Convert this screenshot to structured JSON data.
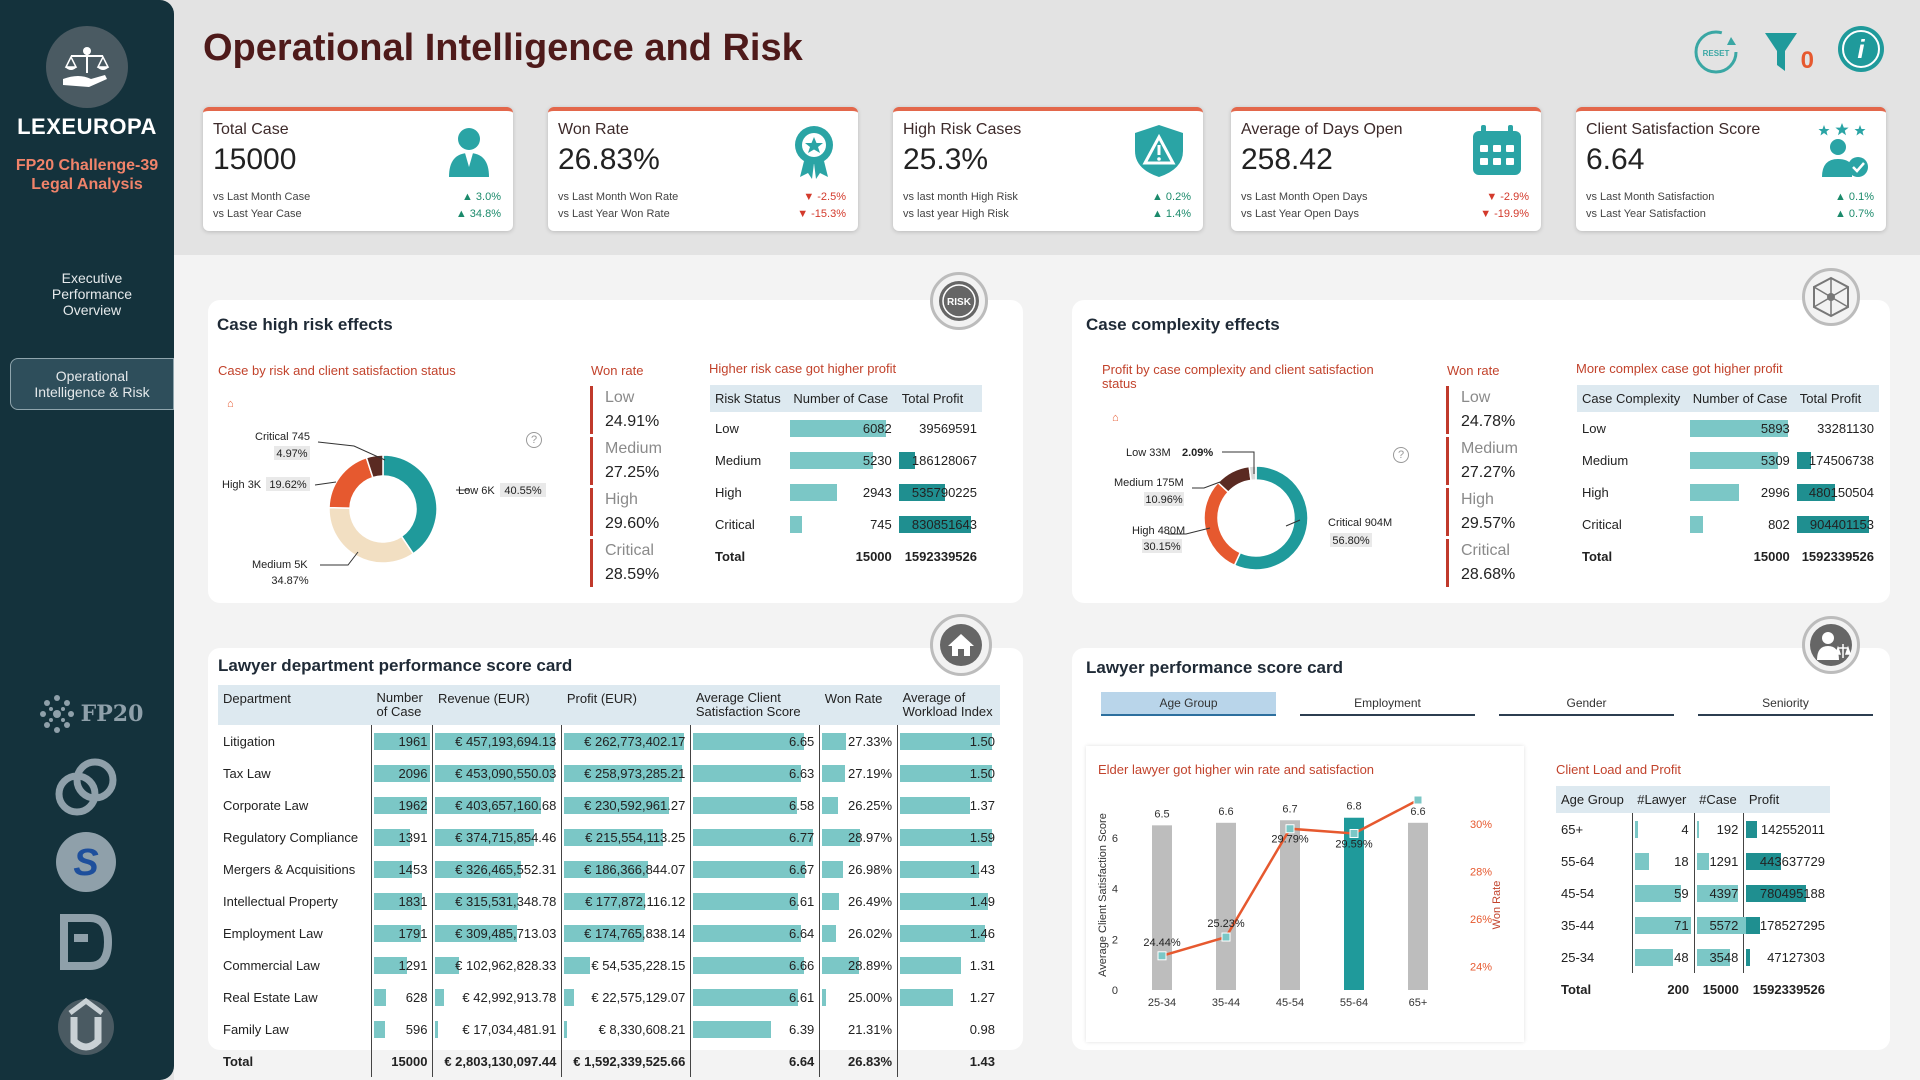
{
  "brand": {
    "name": "LEXEUROPA",
    "subtitle_line1": "FP20 Challenge-39",
    "subtitle_line2": "Legal Analysis",
    "fp20_label": "FP20"
  },
  "nav": {
    "item1_line1": "Executive",
    "item1_line2": "Performance",
    "item1_line3": "Overview",
    "item2_line1": "Operational",
    "item2_line2": "Intelligence & Risk"
  },
  "header": {
    "title": "Operational Intelligence and Risk",
    "reset_label": "RESET",
    "filter_count": "0"
  },
  "kpis": [
    {
      "title": "Total Case",
      "value": "15000",
      "row1_label": "vs Last Month Case",
      "row1_value": "▲ 3.0%",
      "row2_label": "vs Last Year Case",
      "row2_value": "▲ 34.8%"
    },
    {
      "title": "Won Rate",
      "value": "26.83%",
      "row1_label": "vs Last Month Won Rate",
      "row1_value": "▼ -2.5%",
      "row2_label": "vs Last Year Won Rate",
      "row2_value": "▼ -15.3%"
    },
    {
      "title": "High Risk Cases",
      "value": "25.3%",
      "row1_label": "vs last month High Risk",
      "row1_value": "▲ 0.2%",
      "row2_label": "vs last year High Risk",
      "row2_value": "▲ 1.4%"
    },
    {
      "title": "Average of Days Open",
      "value": "258.42",
      "row1_label": "vs Last Month Open Days",
      "row1_value": "▼ -2.9%",
      "row2_label": "vs Last Year Open Days",
      "row2_value": "▼ -19.9%"
    },
    {
      "title": "Client Satisfaction Score",
      "value": "6.64",
      "row1_label": "vs Last Month Satisfaction",
      "row1_value": "▲ 0.1%",
      "row2_label": "vs Last Year Satisfaction",
      "row2_value": "▲ 0.7%"
    }
  ],
  "risk_panel": {
    "title": "Case high risk effects",
    "badge": "RISK",
    "donut_title": "Case by risk and client satisfaction status",
    "donut_labels": [
      {
        "name": "Critical",
        "amount": "745",
        "pct": "4.97%"
      },
      {
        "name": "High",
        "amount": "3K",
        "pct": "19.62%"
      },
      {
        "name": "Low",
        "amount": "6K",
        "pct": "40.55%"
      },
      {
        "name": "Medium",
        "amount": "5K",
        "pct": "34.87%"
      }
    ],
    "donut_values": [
      40.55,
      34.87,
      19.62,
      4.97
    ],
    "winrate_title": "Won rate",
    "winrates": [
      {
        "label": "Low",
        "value": "24.91%"
      },
      {
        "label": "Medium",
        "value": "27.25%"
      },
      {
        "label": "High",
        "value": "29.60%"
      },
      {
        "label": "Critical",
        "value": "28.59%"
      }
    ],
    "table_title": "Higher risk case got higher profit",
    "headers": [
      "Risk Status",
      "Number of Case",
      "Total Profit"
    ],
    "rows": [
      {
        "label": "Low",
        "cases": "6082",
        "profit": "39569591",
        "case_frac": 1.0,
        "profit_frac": 0.0
      },
      {
        "label": "Medium",
        "cases": "5230",
        "profit": "186128067",
        "case_frac": 0.86,
        "profit_frac": 0.22
      },
      {
        "label": "High",
        "cases": "2943",
        "profit": "535790225",
        "case_frac": 0.48,
        "profit_frac": 0.64
      },
      {
        "label": "Critical",
        "cases": "745",
        "profit": "830851643",
        "case_frac": 0.12,
        "profit_frac": 1.0
      }
    ],
    "total": {
      "label": "Total",
      "cases": "15000",
      "profit": "1592339526"
    }
  },
  "complexity_panel": {
    "title": "Case complexity effects",
    "donut_title_line1": "Profit by case complexity and client satisfaction",
    "donut_title_line2": "status",
    "donut_labels": [
      {
        "name": "Low",
        "amount": "33M",
        "pct": "2.09%"
      },
      {
        "name": "Medium",
        "amount": "175M",
        "pct": "10.96%"
      },
      {
        "name": "High",
        "amount": "480M",
        "pct": "30.15%"
      },
      {
        "name": "Critical",
        "amount": "904M",
        "pct": "56.80%"
      }
    ],
    "donut_values": [
      56.8,
      30.15,
      10.96,
      2.09
    ],
    "winrate_title": "Won rate",
    "winrates": [
      {
        "label": "Low",
        "value": "24.78%"
      },
      {
        "label": "Medium",
        "value": "27.27%"
      },
      {
        "label": "High",
        "value": "29.57%"
      },
      {
        "label": "Critical",
        "value": "28.68%"
      }
    ],
    "table_title": "More complex case got higher profit",
    "headers": [
      "Case Complexity",
      "Number of Case",
      "Total Profit"
    ],
    "rows": [
      {
        "label": "Low",
        "cases": "5893",
        "profit": "33281130",
        "case_frac": 1.0,
        "profit_frac": 0.0
      },
      {
        "label": "Medium",
        "cases": "5309",
        "profit": "174506738",
        "case_frac": 0.9,
        "profit_frac": 0.2
      },
      {
        "label": "High",
        "cases": "2996",
        "profit": "480150504",
        "case_frac": 0.5,
        "profit_frac": 0.53
      },
      {
        "label": "Critical",
        "cases": "802",
        "profit": "904401153",
        "case_frac": 0.14,
        "profit_frac": 1.0
      }
    ],
    "total": {
      "label": "Total",
      "cases": "15000",
      "profit": "1592339526"
    }
  },
  "dept_panel": {
    "title": "Lawyer department performance score card",
    "headers": [
      "Department",
      "Number of Case",
      "Revenue (EUR)",
      "Profit (EUR)",
      "Average Client Satisfaction Score",
      "Won Rate",
      "Average of Workload Index"
    ],
    "rows": [
      {
        "dept": "Litigation",
        "cases": "1961",
        "revenue": "€ 457,193,694.13",
        "profit": "€ 262,773,402.17",
        "sat": "6.65",
        "won": "27.33%",
        "workload": "1.50",
        "f": [
          1.0,
          1.0,
          1.0,
          0.92,
          0.35,
          1.0
        ]
      },
      {
        "dept": "Tax Law",
        "cases": "2096",
        "revenue": "€ 453,090,550.03",
        "profit": "€ 258,973,285.21",
        "sat": "6.63",
        "won": "27.19%",
        "workload": "1.50",
        "f": [
          1.0,
          0.99,
          0.98,
          0.9,
          0.33,
          1.0
        ]
      },
      {
        "dept": "Corporate Law",
        "cases": "1962",
        "revenue": "€ 403,657,160.68",
        "profit": "€ 230,592,961.27",
        "sat": "6.58",
        "won": "26.25%",
        "workload": "1.37",
        "f": [
          0.94,
          0.88,
          0.87,
          0.86,
          0.23,
          0.76
        ]
      },
      {
        "dept": "Regulatory Compliance",
        "cases": "1391",
        "revenue": "€ 374,715,854.46",
        "profit": "€ 215,554,113.25",
        "sat": "6.77",
        "won": "28.97%",
        "workload": "1.59",
        "f": [
          0.64,
          0.82,
          0.82,
          1.0,
          0.55,
          1.0
        ]
      },
      {
        "dept": "Mergers & Acquisitions",
        "cases": "1453",
        "revenue": "€ 326,465,552.31",
        "profit": "€ 186,366,844.07",
        "sat": "6.67",
        "won": "26.98%",
        "workload": "1.43",
        "f": [
          0.67,
          0.71,
          0.7,
          0.93,
          0.31,
          0.86
        ]
      },
      {
        "dept": "Intellectual Property",
        "cases": "1831",
        "revenue": "€ 315,531,348.78",
        "profit": "€ 177,872,116.12",
        "sat": "6.61",
        "won": "26.49%",
        "workload": "1.49",
        "f": [
          0.85,
          0.69,
          0.67,
          0.87,
          0.25,
          0.96
        ]
      },
      {
        "dept": "Employment Law",
        "cases": "1791",
        "revenue": "€ 309,485,713.03",
        "profit": "€ 174,765,838.14",
        "sat": "6.64",
        "won": "26.02%",
        "workload": "1.46",
        "f": [
          0.83,
          0.68,
          0.66,
          0.9,
          0.2,
          0.92
        ]
      },
      {
        "dept": "Commercial Law",
        "cases": "1291",
        "revenue": "€ 102,962,828.33",
        "profit": "€ 54,535,228.15",
        "sat": "6.66",
        "won": "28.89%",
        "workload": "1.31",
        "f": [
          0.59,
          0.2,
          0.21,
          0.92,
          0.54,
          0.66
        ]
      },
      {
        "dept": "Real Estate Law",
        "cases": "628",
        "revenue": "€ 42,992,913.78",
        "profit": "€ 22,575,129.07",
        "sat": "6.61",
        "won": "25.00%",
        "workload": "1.27",
        "f": [
          0.22,
          0.07,
          0.08,
          0.87,
          0.05,
          0.58
        ]
      },
      {
        "dept": "Family Law",
        "cases": "596",
        "revenue": "€ 17,034,481.91",
        "profit": "€ 8,330,608.21",
        "sat": "6.39",
        "won": "21.31%",
        "workload": "0.98",
        "f": [
          0.2,
          0.02,
          0.02,
          0.65,
          0.0,
          0.0
        ]
      }
    ],
    "total": {
      "dept": "Total",
      "cases": "15000",
      "revenue": "€ 2,803,130,097.44",
      "profit": "€ 1,592,339,525.66",
      "sat": "6.64",
      "won": "26.83%",
      "workload": "1.43"
    }
  },
  "lawyer_panel": {
    "title": "Lawyer performance score card",
    "tabs": [
      "Age Group",
      "Employment",
      "Gender",
      "Seniority"
    ],
    "combo_title": "Elder lawyer got higher win rate and satisfaction",
    "load_title": "Client Load and Profit",
    "load_headers": [
      "Age Group",
      "#Lawyer",
      "#Case",
      "Profit"
    ],
    "load_rows": [
      {
        "age": "65+",
        "lawyers": "4",
        "cases": "192",
        "profit": "142552011",
        "f": [
          0.06,
          0.04,
          0.18
        ]
      },
      {
        "age": "55-64",
        "lawyers": "18",
        "cases": "1291",
        "profit": "443637729",
        "f": [
          0.25,
          0.23,
          0.57
        ]
      },
      {
        "age": "45-54",
        "lawyers": "59",
        "cases": "4397",
        "profit": "780495188",
        "f": [
          0.83,
          0.79,
          1.0
        ]
      },
      {
        "age": "35-44",
        "lawyers": "71",
        "cases": "5572",
        "profit": "178527295",
        "f": [
          1.0,
          1.0,
          0.23
        ]
      },
      {
        "age": "25-34",
        "lawyers": "48",
        "cases": "3548",
        "profit": "47127303",
        "f": [
          0.68,
          0.64,
          0.06
        ]
      }
    ],
    "load_total": {
      "age": "Total",
      "lawyers": "200",
      "cases": "15000",
      "profit": "1592339526"
    }
  },
  "chart_data": {
    "type": "bar",
    "title": "Elder lawyer got higher win rate and satisfaction",
    "categories": [
      "25-34",
      "35-44",
      "45-54",
      "55-64",
      "65+"
    ],
    "series": [
      {
        "name": "Average Client Satisfaction Score",
        "values": [
          6.5,
          6.6,
          6.7,
          6.8,
          6.6
        ],
        "axis": "left"
      },
      {
        "name": "Won Rate",
        "values": [
          24.44,
          25.23,
          29.79,
          29.59,
          31.0
        ],
        "axis": "right",
        "type": "line"
      }
    ],
    "point_labels": [
      "24.44%",
      "25.23%",
      "29.79%",
      "29.59%"
    ],
    "ylabel": "Average Client Satisfaction Score",
    "y2label": "Won Rate",
    "ylim": [
      0,
      7.5
    ],
    "yticks": [
      "0",
      "2",
      "4",
      "6"
    ],
    "y2lim": [
      23,
      31
    ],
    "y2ticks": [
      "24%",
      "26%",
      "28%",
      "30%"
    ],
    "highlight_category": "55-64",
    "colors": {
      "bar": "#bdbdbd",
      "bar_highlight": "#1f9a9b",
      "line": "#e6592f"
    }
  },
  "colors": {
    "teal": "#1f9a9b",
    "orange": "#e6592f",
    "sand": "#f2dfc2",
    "maroon": "#5a2a22",
    "accent": "#e3674b"
  }
}
